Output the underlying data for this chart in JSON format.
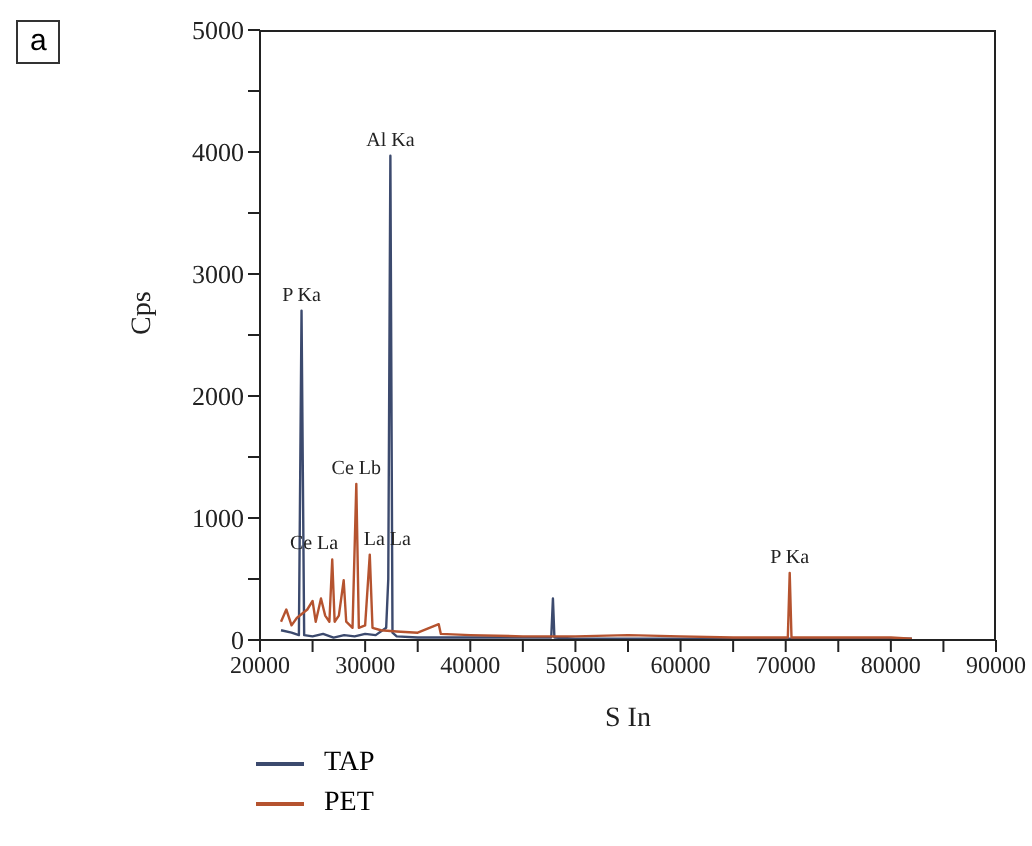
{
  "chart_data": {
    "type": "line",
    "title": "a",
    "xlabel": "S In",
    "ylabel": "Cps",
    "xlim": [
      20000,
      90000
    ],
    "xticks": [
      20000,
      {
        "value": 25000,
        "label": null
      },
      30000,
      {
        "value": 35000,
        "label": null
      },
      40000,
      {
        "value": 45000,
        "label": null
      },
      50000,
      {
        "value": 55000,
        "label": null
      },
      60000,
      {
        "value": 65000,
        "label": null
      },
      70000,
      {
        "value": 75000,
        "label": null
      },
      80000,
      {
        "value": 85000,
        "label": null
      },
      90000
    ],
    "ylim": [
      0,
      5000
    ],
    "yticks": [
      0,
      {
        "value": 500,
        "label": null
      },
      1000,
      {
        "value": 1500,
        "label": null
      },
      2000,
      {
        "value": 2500,
        "label": null
      },
      3000,
      {
        "value": 3500,
        "label": null
      },
      4000,
      {
        "value": 4500,
        "label": null
      },
      5000
    ],
    "legend": "bottom",
    "marker": "none",
    "line_style": "solid",
    "grid": false,
    "series": [
      {
        "name": "TAP",
        "color": "#3c4a6e",
        "x": [
          22000,
          23000,
          23700,
          23950,
          24200,
          25000,
          26000,
          27000,
          28000,
          29000,
          30000,
          31000,
          32000,
          32200,
          32400,
          32600,
          33000,
          35000,
          40000,
          45000,
          47700,
          47860,
          48000,
          50000,
          60000,
          70000,
          80000,
          82000
        ],
        "values": [
          80,
          60,
          40,
          2700,
          40,
          30,
          50,
          20,
          40,
          30,
          50,
          40,
          100,
          500,
          3970,
          60,
          30,
          20,
          20,
          20,
          20,
          340,
          20,
          10,
          10,
          10,
          10,
          10
        ]
      },
      {
        "name": "PET",
        "color": "#b5532f",
        "x": [
          22000,
          22500,
          23000,
          23500,
          24500,
          25000,
          25300,
          25800,
          26200,
          26600,
          26870,
          27100,
          27500,
          27960,
          28200,
          28800,
          29160,
          29400,
          30000,
          30440,
          30700,
          31500,
          33000,
          35000,
          37000,
          37200,
          40000,
          45000,
          50000,
          55000,
          60000,
          65000,
          70200,
          70380,
          70550,
          75000,
          80000,
          82000
        ],
        "values": [
          150,
          250,
          120,
          180,
          250,
          320,
          150,
          340,
          200,
          150,
          660,
          150,
          200,
          490,
          150,
          100,
          1280,
          100,
          120,
          700,
          100,
          80,
          70,
          60,
          130,
          50,
          40,
          30,
          30,
          40,
          30,
          20,
          20,
          550,
          20,
          20,
          20,
          10
        ]
      }
    ],
    "annotations": [
      {
        "text": "P Ka",
        "x": 23950,
        "y": 2700
      },
      {
        "text": "Al Ka",
        "x": 32400,
        "y": 3970
      },
      {
        "text": "Ce Lb",
        "x": 29160,
        "y": 1280
      },
      {
        "text": "Ce La",
        "x": 26870,
        "y": 660
      },
      {
        "text": "La La",
        "x": 30440,
        "y": 700
      },
      {
        "text": "P Ka",
        "x": 70380,
        "y": 550
      }
    ]
  }
}
